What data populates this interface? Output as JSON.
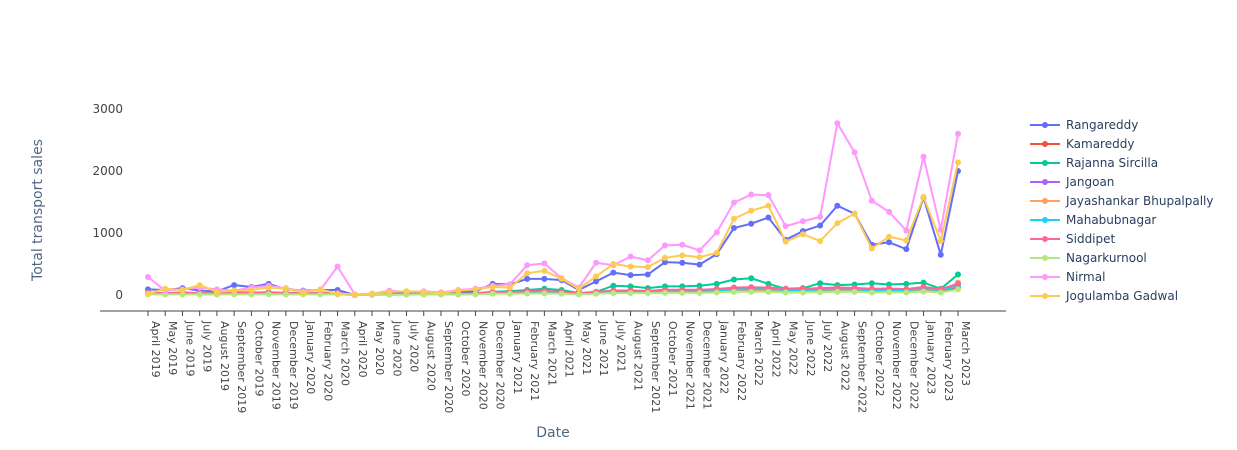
{
  "chart_data": {
    "type": "line",
    "xlabel": "Date",
    "ylabel": "Total transport sales",
    "ylim": [
      -250,
      3000
    ],
    "yticks": [
      0,
      1000,
      2000,
      3000
    ],
    "grid": false,
    "legend_position": "right",
    "categories": [
      "April 2019",
      "May 2019",
      "June 2019",
      "July 2019",
      "August 2019",
      "September 2019",
      "October 2019",
      "November 2019",
      "December 2019",
      "January 2020",
      "February 2020",
      "March 2020",
      "April 2020",
      "May 2020",
      "June 2020",
      "July 2020",
      "August 2020",
      "September 2020",
      "October 2020",
      "November 2020",
      "December 2020",
      "January 2021",
      "February 2021",
      "March 2021",
      "April 2021",
      "May 2021",
      "June 2021",
      "July 2021",
      "August 2021",
      "September 2021",
      "October 2021",
      "November 2021",
      "December 2021",
      "January 2022",
      "February 2022",
      "March 2022",
      "April 2022",
      "May 2022",
      "June 2022",
      "July 2022",
      "August 2022",
      "September 2022",
      "October 2022",
      "November 2022",
      "December 2022",
      "January 2023",
      "February 2023",
      "March 2023"
    ],
    "series": [
      {
        "name": "Rangareddy",
        "color": "#636efa",
        "values": [
          90,
          80,
          110,
          70,
          60,
          160,
          130,
          180,
          90,
          70,
          80,
          80,
          0,
          20,
          30,
          40,
          50,
          40,
          50,
          60,
          180,
          170,
          260,
          260,
          240,
          80,
          220,
          360,
          320,
          330,
          530,
          520,
          490,
          660,
          1080,
          1150,
          1250,
          890,
          1030,
          1120,
          1440,
          1310,
          810,
          850,
          740,
          1570,
          650,
          2000
        ]
      },
      {
        "name": "Kamareddy",
        "color": "#EF553B",
        "values": [
          20,
          20,
          25,
          20,
          15,
          25,
          20,
          25,
          20,
          20,
          20,
          20,
          0,
          5,
          10,
          10,
          15,
          15,
          15,
          20,
          30,
          30,
          40,
          40,
          35,
          20,
          35,
          45,
          45,
          45,
          55,
          55,
          55,
          65,
          80,
          80,
          85,
          70,
          70,
          75,
          85,
          80,
          65,
          70,
          65,
          90,
          65,
          120
        ]
      },
      {
        "name": "Rajanna Sircilla",
        "color": "#00cc96",
        "values": [
          40,
          30,
          40,
          30,
          30,
          40,
          40,
          45,
          35,
          30,
          30,
          30,
          0,
          10,
          15,
          20,
          25,
          20,
          25,
          30,
          50,
          60,
          80,
          100,
          80,
          30,
          50,
          150,
          140,
          110,
          140,
          140,
          150,
          180,
          250,
          270,
          180,
          100,
          110,
          190,
          160,
          170,
          190,
          170,
          180,
          200,
          100,
          330
        ]
      },
      {
        "name": "Jangoan",
        "color": "#ab63fa",
        "values": [
          30,
          25,
          30,
          25,
          20,
          30,
          30,
          35,
          25,
          25,
          25,
          25,
          0,
          10,
          10,
          15,
          20,
          15,
          20,
          25,
          40,
          40,
          60,
          60,
          50,
          25,
          45,
          70,
          70,
          65,
          80,
          80,
          80,
          95,
          110,
          120,
          110,
          90,
          90,
          100,
          110,
          105,
          90,
          95,
          85,
          120,
          80,
          160
        ]
      },
      {
        "name": "Jayashankar Bhupalpally",
        "color": "#FFA15A",
        "values": [
          15,
          15,
          20,
          15,
          10,
          20,
          15,
          20,
          15,
          15,
          15,
          15,
          0,
          5,
          5,
          10,
          10,
          10,
          10,
          15,
          25,
          25,
          35,
          35,
          30,
          15,
          30,
          40,
          40,
          40,
          50,
          50,
          50,
          60,
          75,
          75,
          80,
          65,
          65,
          70,
          80,
          75,
          60,
          65,
          60,
          85,
          60,
          200
        ]
      },
      {
        "name": "Mahabubnagar",
        "color": "#19d3f3",
        "values": [
          25,
          20,
          25,
          20,
          20,
          25,
          25,
          30,
          20,
          20,
          20,
          20,
          0,
          5,
          10,
          10,
          15,
          15,
          15,
          20,
          35,
          35,
          45,
          50,
          40,
          20,
          40,
          55,
          55,
          50,
          65,
          65,
          65,
          75,
          90,
          95,
          95,
          80,
          80,
          85,
          95,
          90,
          75,
          80,
          75,
          100,
          75,
          140
        ]
      },
      {
        "name": "Siddipet",
        "color": "#FF6692",
        "values": [
          35,
          30,
          35,
          30,
          25,
          35,
          35,
          40,
          30,
          30,
          30,
          30,
          0,
          10,
          15,
          15,
          20,
          20,
          20,
          25,
          45,
          45,
          60,
          65,
          55,
          25,
          50,
          70,
          70,
          65,
          85,
          85,
          85,
          95,
          120,
          125,
          120,
          100,
          100,
          110,
          120,
          115,
          100,
          105,
          95,
          130,
          95,
          180
        ]
      },
      {
        "name": "Nagarkurnool",
        "color": "#B6E880",
        "values": [
          10,
          10,
          10,
          10,
          10,
          10,
          10,
          15,
          10,
          10,
          10,
          10,
          0,
          5,
          5,
          5,
          10,
          10,
          10,
          10,
          20,
          20,
          25,
          25,
          20,
          10,
          20,
          30,
          30,
          30,
          35,
          35,
          35,
          40,
          50,
          50,
          50,
          40,
          40,
          45,
          50,
          50,
          40,
          45,
          40,
          55,
          40,
          90
        ]
      },
      {
        "name": "Nirmal",
        "color": "#FF97FF",
        "values": [
          290,
          70,
          90,
          120,
          90,
          70,
          120,
          150,
          110,
          60,
          80,
          460,
          10,
          20,
          70,
          50,
          60,
          40,
          80,
          100,
          150,
          170,
          480,
          510,
          270,
          120,
          520,
          480,
          620,
          560,
          800,
          810,
          720,
          1010,
          1490,
          1620,
          1610,
          1110,
          1190,
          1260,
          2770,
          2300,
          1520,
          1340,
          1040,
          2230,
          1050,
          2600
        ]
      },
      {
        "name": "Jogulamba Gadwal",
        "color": "#FECB52",
        "values": [
          20,
          100,
          80,
          160,
          50,
          70,
          80,
          120,
          100,
          40,
          90,
          20,
          10,
          20,
          50,
          60,
          50,
          30,
          70,
          90,
          130,
          120,
          350,
          390,
          260,
          100,
          300,
          500,
          460,
          450,
          600,
          640,
          610,
          680,
          1230,
          1360,
          1440,
          860,
          980,
          870,
          1160,
          1310,
          750,
          940,
          880,
          1580,
          870,
          2140
        ]
      }
    ]
  }
}
